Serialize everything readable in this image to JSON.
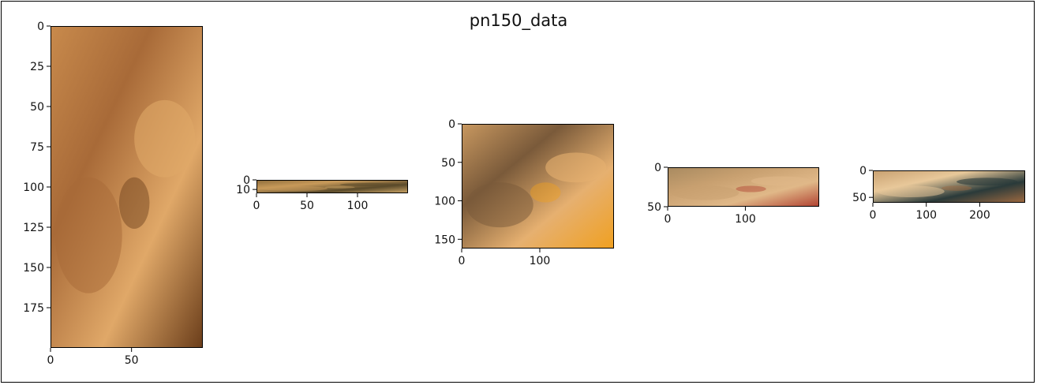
{
  "figure": {
    "title": "pn150_data",
    "colors": {
      "frame": "#000000",
      "text": "#111111"
    }
  },
  "chart_data": [
    {
      "type": "image",
      "description_icon": "cat-eye-closeup-image",
      "x_ticks": [
        0,
        50
      ],
      "y_ticks": [
        0,
        25,
        50,
        75,
        100,
        125,
        150,
        175
      ],
      "xlim": [
        0,
        94
      ],
      "ylim": [
        200,
        0
      ],
      "palette": [
        "#c88a4c",
        "#a86a38",
        "#e0a868",
        "#6a3d1a"
      ]
    },
    {
      "type": "image",
      "description_icon": "cat-strip-image",
      "x_ticks": [
        0,
        50,
        100
      ],
      "y_ticks": [
        0,
        10
      ],
      "xlim": [
        0,
        150
      ],
      "ylim": [
        14,
        0
      ],
      "palette": [
        "#8a6a3a",
        "#c89a5a",
        "#5a4a2a",
        "#d0a868"
      ]
    },
    {
      "type": "image",
      "description_icon": "cat-face-image",
      "x_ticks": [
        0,
        100
      ],
      "y_ticks": [
        0,
        50,
        100,
        150
      ],
      "xlim": [
        0,
        195
      ],
      "ylim": [
        162,
        0
      ],
      "palette": [
        "#c89860",
        "#7a5a3a",
        "#e6b070",
        "#f0a020"
      ]
    },
    {
      "type": "image",
      "description_icon": "cat-lying-image",
      "x_ticks": [
        0,
        100
      ],
      "y_ticks": [
        0,
        50
      ],
      "xlim": [
        0,
        195
      ],
      "ylim": [
        50,
        0
      ],
      "palette": [
        "#a88a60",
        "#c8a070",
        "#e0b888",
        "#b04030"
      ]
    },
    {
      "type": "image",
      "description_icon": "cat-curled-image",
      "x_ticks": [
        0,
        100,
        200
      ],
      "y_ticks": [
        0,
        50
      ],
      "xlim": [
        0,
        285
      ],
      "ylim": [
        60,
        0
      ],
      "palette": [
        "#c8a070",
        "#e8c89a",
        "#2a3a3a",
        "#a06a40"
      ]
    }
  ]
}
